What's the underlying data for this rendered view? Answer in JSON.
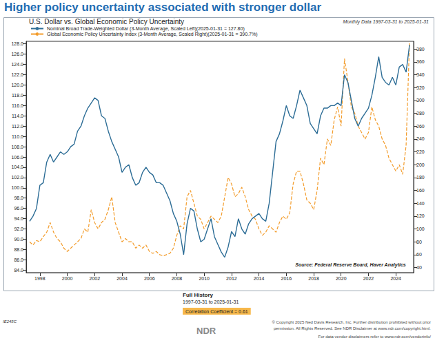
{
  "chart_data": {
    "type": "line",
    "title": "Higher policy uncertainty associated with stronger dollar",
    "subtitle": "U.S. Dollar vs. Global Economic Policy Uncertainty",
    "annotations": [
      "Monthly Data 1997-03-31 to 2025-01-31",
      "Source: Federal Reserve Board, Haver Analytics",
      "Full History",
      "1997-03-31 to 2025-01-31",
      "Correlation Coefficient = 0.61",
      "IE245C",
      "NDR",
      "© Copyright 2025 Ned Davis Research, Inc. Further distribution prohibited without prior",
      "permission. All Rights Reserved. See NDR Disclaimer at www.ndr.com/copyright.html.",
      "For data vendor disclaimers refer to www.ndr.com/vendorinfo/"
    ],
    "x": [
      1997.25,
      1997.5,
      1997.75,
      1998.0,
      1998.25,
      1998.5,
      1998.75,
      1999.0,
      1999.25,
      1999.5,
      1999.75,
      2000.0,
      2000.25,
      2000.5,
      2000.75,
      2001.0,
      2001.25,
      2001.5,
      2001.75,
      2002.0,
      2002.25,
      2002.5,
      2002.75,
      2003.0,
      2003.25,
      2003.5,
      2003.75,
      2004.0,
      2004.25,
      2004.5,
      2004.75,
      2005.0,
      2005.25,
      2005.5,
      2005.75,
      2006.0,
      2006.25,
      2006.5,
      2006.75,
      2007.0,
      2007.25,
      2007.5,
      2007.75,
      2008.0,
      2008.25,
      2008.5,
      2008.75,
      2009.0,
      2009.25,
      2009.5,
      2009.75,
      2010.0,
      2010.25,
      2010.5,
      2010.75,
      2011.0,
      2011.25,
      2011.5,
      2011.75,
      2012.0,
      2012.25,
      2012.5,
      2012.75,
      2013.0,
      2013.25,
      2013.5,
      2013.75,
      2014.0,
      2014.25,
      2014.5,
      2014.75,
      2015.0,
      2015.25,
      2015.5,
      2015.75,
      2016.0,
      2016.25,
      2016.5,
      2016.75,
      2017.0,
      2017.25,
      2017.5,
      2017.75,
      2018.0,
      2018.25,
      2018.5,
      2018.75,
      2019.0,
      2019.25,
      2019.5,
      2019.75,
      2020.0,
      2020.25,
      2020.5,
      2020.75,
      2021.0,
      2021.25,
      2021.5,
      2021.75,
      2022.0,
      2022.25,
      2022.5,
      2022.75,
      2023.0,
      2023.25,
      2023.5,
      2023.75,
      2024.0,
      2024.25,
      2024.5,
      2024.75,
      2025.0
    ],
    "series": [
      {
        "name": "Nominal Broad Trade-Weighted Dollar (3-Month Average, Scaled Left)(2025-01-31 = 127.80)",
        "color": "#2d6d96",
        "line_style": "solid",
        "values": [
          93.5,
          94.5,
          96,
          100.5,
          101,
          105,
          106.5,
          105,
          106,
          107,
          106.5,
          107,
          108,
          108.5,
          111,
          112,
          114,
          115.5,
          116.5,
          117.5,
          117,
          114,
          113.5,
          111,
          109,
          107.5,
          106,
          103,
          104,
          104.5,
          102,
          100.5,
          101,
          103,
          104,
          103,
          102.5,
          101,
          101,
          100.5,
          99,
          97.5,
          95,
          93.5,
          91,
          87,
          93,
          96,
          95.5,
          92,
          89.5,
          90,
          92,
          94,
          90.5,
          89,
          87.5,
          86.5,
          88.5,
          91.5,
          90.5,
          94,
          92,
          91,
          93,
          94,
          94.5,
          95,
          94,
          93.5,
          97,
          103,
          109,
          110.5,
          113,
          116,
          114,
          113.5,
          116,
          119,
          117.5,
          116,
          112.5,
          111.5,
          110.5,
          114,
          115.5,
          115.5,
          116,
          116,
          116.5,
          116,
          122,
          120.5,
          117,
          113.5,
          112,
          113.5,
          114.5,
          115.5,
          118,
          121.5,
          125.5,
          121.5,
          120.5,
          120,
          121.5,
          120,
          123.5,
          124,
          122.5,
          127.8
        ]
      },
      {
        "name": "Global Economic Policy Uncertainty Index (3-Month Average, Scaled Right)(2025-01-31 = 390.7%)",
        "color": "#f39c2b",
        "line_style": "dashed",
        "axis": "y2",
        "values": [
          80,
          75,
          82,
          80,
          88,
          95,
          110,
          95,
          85,
          80,
          70,
          65,
          70,
          75,
          80,
          85,
          100,
          95,
          130,
          110,
          100,
          110,
          115,
          130,
          150,
          110,
          95,
          80,
          85,
          80,
          80,
          70,
          75,
          70,
          75,
          65,
          62,
          65,
          60,
          58,
          60,
          62,
          70,
          90,
          105,
          100,
          150,
          160,
          140,
          120,
          115,
          100,
          110,
          120,
          115,
          110,
          120,
          150,
          180,
          170,
          150,
          155,
          165,
          150,
          130,
          120,
          115,
          100,
          90,
          95,
          105,
          100,
          95,
          110,
          120,
          115,
          125,
          170,
          190,
          190,
          170,
          145,
          140,
          130,
          160,
          210,
          200,
          240,
          230,
          270,
          290,
          260,
          365,
          330,
          290,
          280,
          260,
          250,
          240,
          250,
          290,
          270,
          260,
          240,
          230,
          210,
          200,
          190,
          200,
          185,
          230,
          390.7
        ]
      }
    ],
    "xlim": [
      1997,
      2025.3
    ],
    "xticks": [
      1998,
      2000,
      2002,
      2004,
      2006,
      2008,
      2010,
      2012,
      2014,
      2016,
      2018,
      2020,
      2022,
      2024
    ],
    "ylim": [
      83.5,
      128.5
    ],
    "yticks": [
      {
        "value": 84,
        "label": "84.0"
      },
      {
        "value": 86,
        "label": "86.0"
      },
      {
        "value": 88,
        "label": "88.0"
      },
      {
        "value": 90,
        "label": "90.0"
      },
      {
        "value": 92,
        "label": "92.0"
      },
      {
        "value": 94,
        "label": "94.0"
      },
      {
        "value": 96,
        "label": "96.0"
      },
      {
        "value": 98,
        "label": "98.0"
      },
      {
        "value": 100,
        "label": "100.0"
      },
      {
        "value": 102,
        "label": "102.0"
      },
      {
        "value": 104,
        "label": "104.0"
      },
      {
        "value": 106,
        "label": "106.0"
      },
      {
        "value": 108,
        "label": "108.0"
      },
      {
        "value": 110,
        "label": "110.0"
      },
      {
        "value": 112,
        "label": "112.0"
      },
      {
        "value": 114,
        "label": "114.0"
      },
      {
        "value": 116,
        "label": "116.0"
      },
      {
        "value": 118,
        "label": "118.0"
      },
      {
        "value": 120,
        "label": "120.0"
      },
      {
        "value": 122,
        "label": "122.0"
      },
      {
        "value": 124,
        "label": "124.0"
      },
      {
        "value": 126,
        "label": "126.0"
      },
      {
        "value": 128,
        "label": "128.0"
      }
    ],
    "y2lim": [
      32,
      392
    ],
    "y2ticks": [
      40,
      60,
      80,
      100,
      120,
      140,
      160,
      180,
      200,
      220,
      240,
      260,
      280,
      300,
      320,
      340,
      360,
      380
    ],
    "grid": false,
    "legend": "upper left"
  }
}
